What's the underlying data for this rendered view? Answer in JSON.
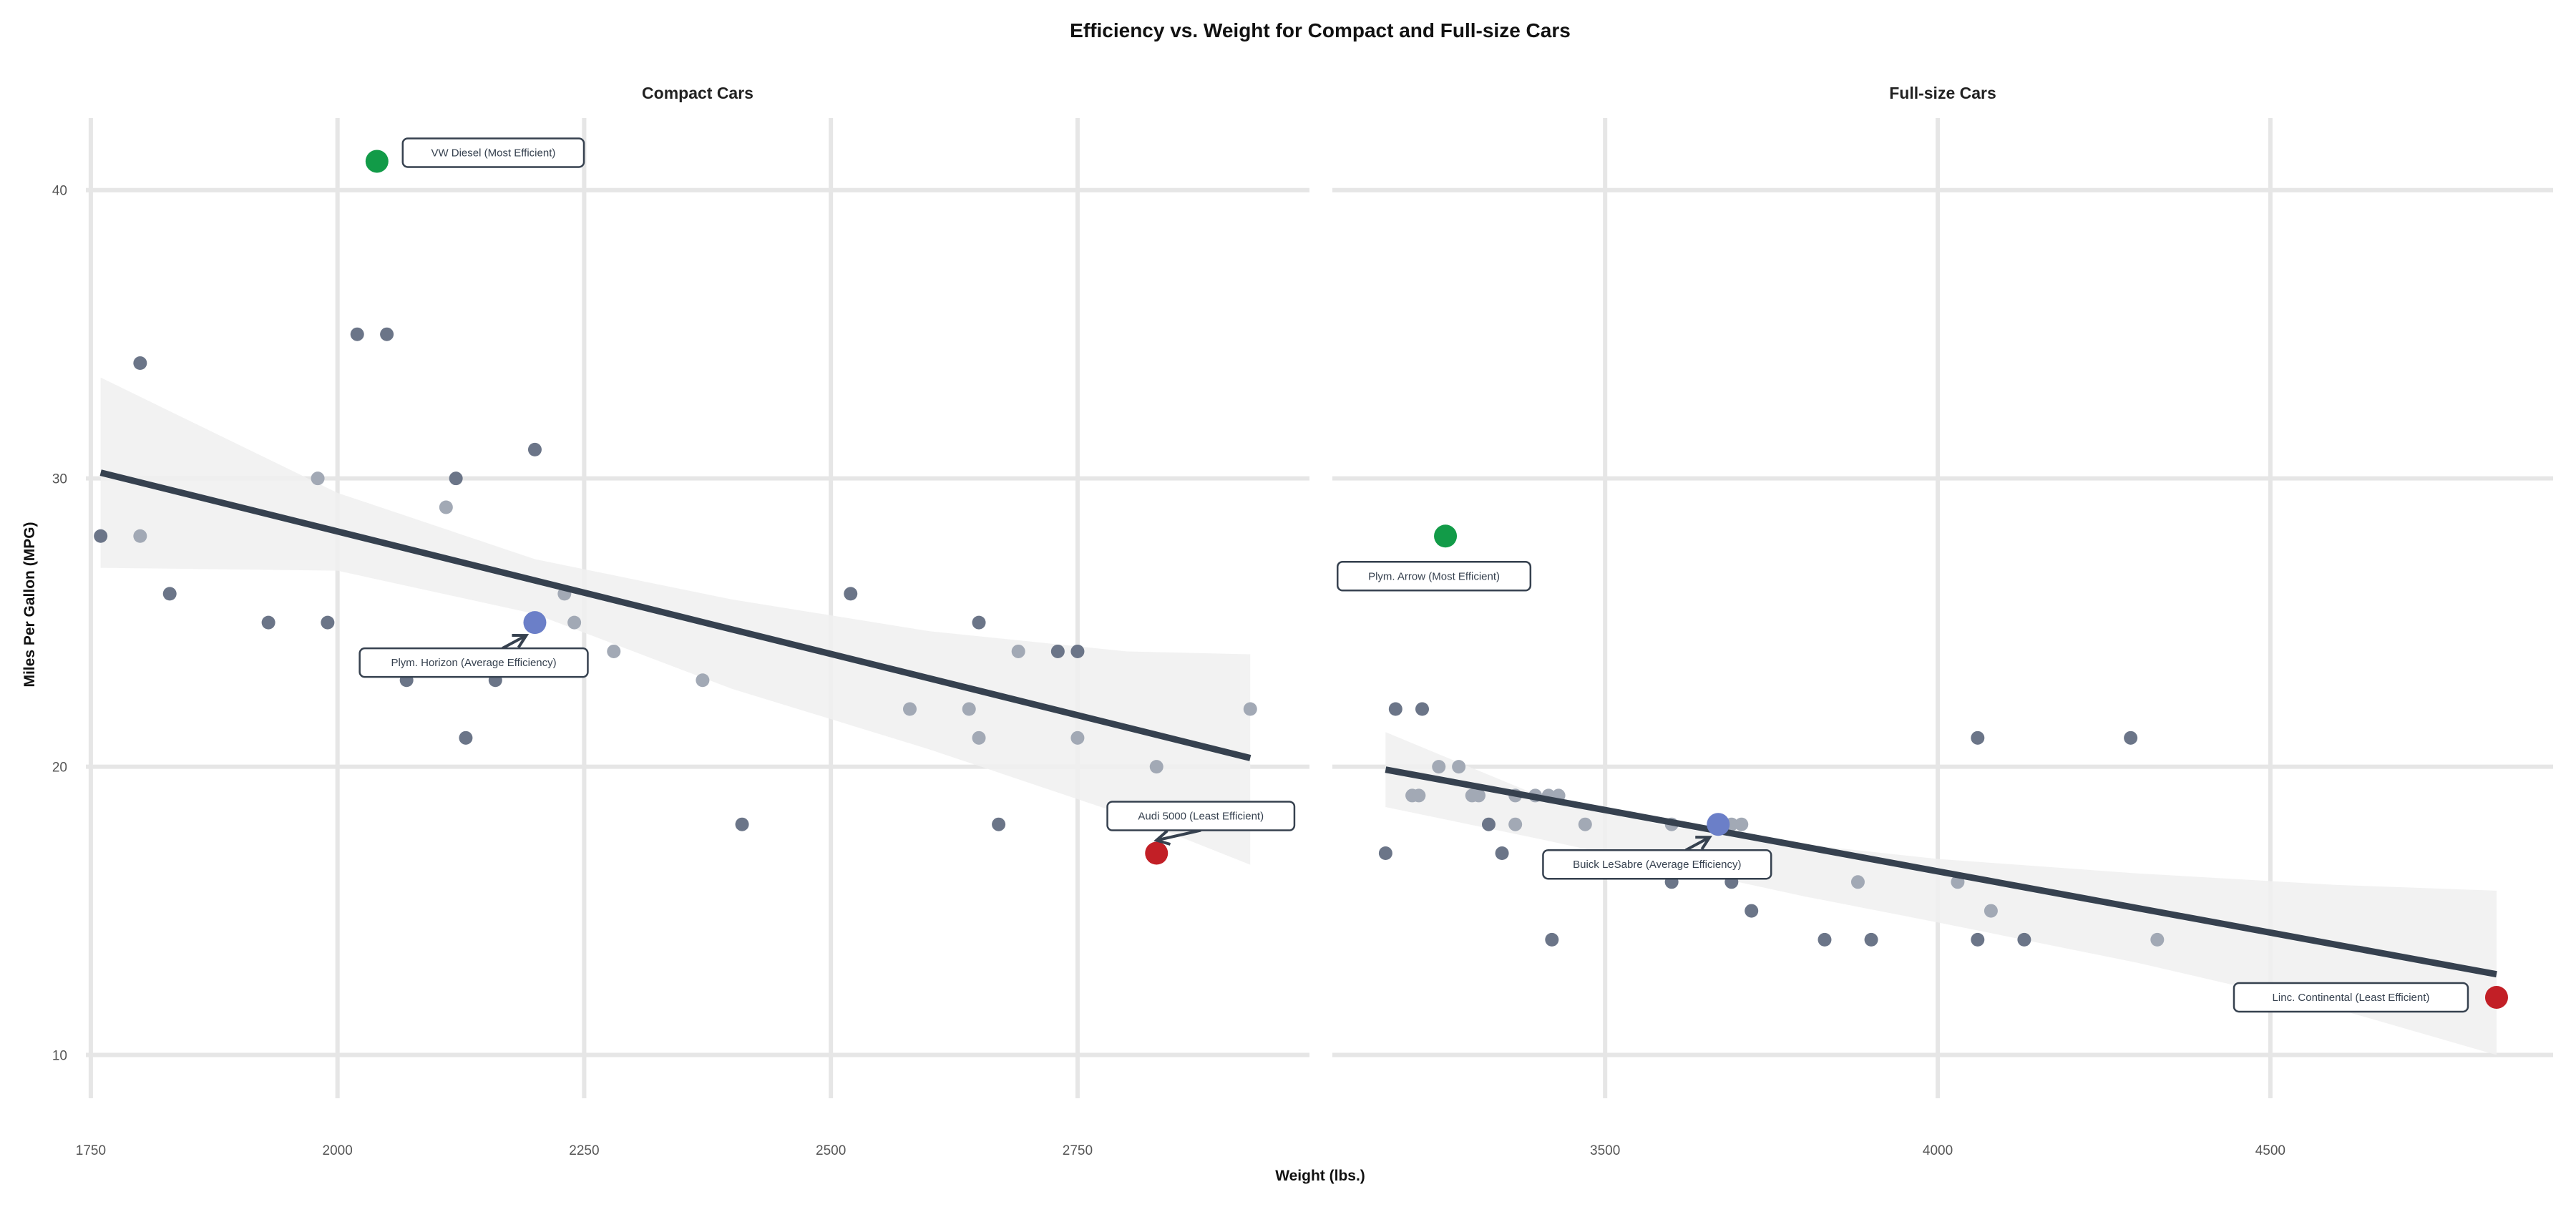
{
  "chart_data": {
    "type": "scatter",
    "title": "Efficiency vs. Weight for Compact and Full-size Cars",
    "xlabel": "Weight (lbs.)",
    "ylabel": "Miles Per Gallon (MPG)",
    "ylim": [
      8.5,
      42.5
    ],
    "yticks": [
      10,
      20,
      30,
      40
    ],
    "grid": true,
    "legend": "none",
    "colors": {
      "point_dark": "#6b7588",
      "point_light": "#a2a9b5",
      "most_efficient": "#129b48",
      "average": "#6b7fc8",
      "least_efficient": "#c21f26",
      "trend": "#36414f",
      "band": "#f0f0f0"
    },
    "panels": [
      {
        "title": "Compact Cars",
        "xlim": [
          1745,
          2985
        ],
        "xticks": [
          1750,
          2000,
          2250,
          2500,
          2750
        ],
        "trend": {
          "x": [
            1760,
            2925
          ],
          "y": [
            30.2,
            20.3
          ]
        },
        "band_upper": [
          [
            1760,
            33.5
          ],
          [
            2000,
            29.5
          ],
          [
            2200,
            27.2
          ],
          [
            2400,
            25.8
          ],
          [
            2600,
            24.7
          ],
          [
            2800,
            24.0
          ],
          [
            2925,
            23.9
          ]
        ],
        "band_lower": [
          [
            1760,
            26.9
          ],
          [
            2000,
            26.8
          ],
          [
            2200,
            25.3
          ],
          [
            2400,
            22.7
          ],
          [
            2600,
            20.6
          ],
          [
            2800,
            18.3
          ],
          [
            2925,
            16.6
          ]
        ],
        "points": [
          {
            "x": 1760,
            "y": 28,
            "shade": "dark"
          },
          {
            "x": 1800,
            "y": 34,
            "shade": "dark"
          },
          {
            "x": 1800,
            "y": 28,
            "shade": "light"
          },
          {
            "x": 1830,
            "y": 26,
            "shade": "dark"
          },
          {
            "x": 1930,
            "y": 25,
            "shade": "dark"
          },
          {
            "x": 1980,
            "y": 30,
            "shade": "light"
          },
          {
            "x": 1990,
            "y": 25,
            "shade": "dark"
          },
          {
            "x": 2020,
            "y": 35,
            "shade": "dark"
          },
          {
            "x": 2050,
            "y": 35,
            "shade": "dark"
          },
          {
            "x": 2070,
            "y": 23,
            "shade": "dark"
          },
          {
            "x": 2110,
            "y": 29,
            "shade": "light"
          },
          {
            "x": 2120,
            "y": 30,
            "shade": "dark"
          },
          {
            "x": 2130,
            "y": 21,
            "shade": "dark"
          },
          {
            "x": 2160,
            "y": 23,
            "shade": "dark"
          },
          {
            "x": 2200,
            "y": 31,
            "shade": "dark"
          },
          {
            "x": 2230,
            "y": 26,
            "shade": "light"
          },
          {
            "x": 2240,
            "y": 25,
            "shade": "light"
          },
          {
            "x": 2280,
            "y": 24,
            "shade": "light"
          },
          {
            "x": 2370,
            "y": 23,
            "shade": "light"
          },
          {
            "x": 2410,
            "y": 18,
            "shade": "dark"
          },
          {
            "x": 2520,
            "y": 26,
            "shade": "dark"
          },
          {
            "x": 2580,
            "y": 22,
            "shade": "light"
          },
          {
            "x": 2640,
            "y": 22,
            "shade": "light"
          },
          {
            "x": 2650,
            "y": 25,
            "shade": "dark"
          },
          {
            "x": 2650,
            "y": 21,
            "shade": "light"
          },
          {
            "x": 2670,
            "y": 18,
            "shade": "dark"
          },
          {
            "x": 2690,
            "y": 24,
            "shade": "light"
          },
          {
            "x": 2730,
            "y": 24,
            "shade": "dark"
          },
          {
            "x": 2750,
            "y": 24,
            "shade": "dark"
          },
          {
            "x": 2750,
            "y": 21,
            "shade": "light"
          },
          {
            "x": 2830,
            "y": 20,
            "shade": "light"
          },
          {
            "x": 2925,
            "y": 22,
            "shade": "light"
          }
        ],
        "highlights": [
          {
            "x": 2040,
            "y": 41,
            "kind": "most_efficient",
            "label": "VW Diesel (Most Efficient)",
            "anchor": "right",
            "arrow": false
          },
          {
            "x": 2200,
            "y": 25,
            "kind": "average",
            "label": "Plym. Horizon (Average Efficiency)",
            "anchor": "below-left",
            "arrow": true
          },
          {
            "x": 2830,
            "y": 17,
            "kind": "least_efficient",
            "label": "Audi 5000 (Least Efficient)",
            "anchor": "above",
            "arrow": true
          }
        ]
      },
      {
        "title": "Full-size Cars",
        "xlim": [
          3090,
          4925
        ],
        "xticks": [
          3500,
          4000,
          4500
        ],
        "trend": {
          "x": [
            3170,
            4840
          ],
          "y": [
            19.9,
            12.8
          ]
        },
        "band_upper": [
          [
            3170,
            21.2
          ],
          [
            3400,
            19.0
          ],
          [
            3600,
            17.9
          ],
          [
            3800,
            17.3
          ],
          [
            4000,
            16.8
          ],
          [
            4300,
            16.3
          ],
          [
            4600,
            15.9
          ],
          [
            4840,
            15.7
          ]
        ],
        "band_lower": [
          [
            3170,
            18.6
          ],
          [
            3400,
            17.5
          ],
          [
            3600,
            16.5
          ],
          [
            3800,
            15.5
          ],
          [
            4000,
            14.6
          ],
          [
            4300,
            13.2
          ],
          [
            4600,
            11.6
          ],
          [
            4840,
            10.0
          ]
        ],
        "points": [
          {
            "x": 3170,
            "y": 17,
            "shade": "dark"
          },
          {
            "x": 3185,
            "y": 22,
            "shade": "dark"
          },
          {
            "x": 3210,
            "y": 19,
            "shade": "light"
          },
          {
            "x": 3220,
            "y": 19,
            "shade": "light"
          },
          {
            "x": 3225,
            "y": 22,
            "shade": "dark"
          },
          {
            "x": 3250,
            "y": 20,
            "shade": "light"
          },
          {
            "x": 3280,
            "y": 20,
            "shade": "light"
          },
          {
            "x": 3300,
            "y": 19,
            "shade": "light"
          },
          {
            "x": 3310,
            "y": 19,
            "shade": "light"
          },
          {
            "x": 3325,
            "y": 18,
            "shade": "dark"
          },
          {
            "x": 3345,
            "y": 17,
            "shade": "dark"
          },
          {
            "x": 3365,
            "y": 18,
            "shade": "light"
          },
          {
            "x": 3365,
            "y": 19,
            "shade": "light"
          },
          {
            "x": 3395,
            "y": 19,
            "shade": "light"
          },
          {
            "x": 3415,
            "y": 19,
            "shade": "light"
          },
          {
            "x": 3420,
            "y": 14,
            "shade": "dark"
          },
          {
            "x": 3430,
            "y": 19,
            "shade": "light"
          },
          {
            "x": 3470,
            "y": 18,
            "shade": "light"
          },
          {
            "x": 3600,
            "y": 18,
            "shade": "light"
          },
          {
            "x": 3600,
            "y": 16,
            "shade": "dark"
          },
          {
            "x": 3690,
            "y": 18,
            "shade": "light"
          },
          {
            "x": 3690,
            "y": 16,
            "shade": "dark"
          },
          {
            "x": 3705,
            "y": 18,
            "shade": "light"
          },
          {
            "x": 3720,
            "y": 15,
            "shade": "dark"
          },
          {
            "x": 3830,
            "y": 14,
            "shade": "dark"
          },
          {
            "x": 3880,
            "y": 16,
            "shade": "light"
          },
          {
            "x": 3900,
            "y": 14,
            "shade": "dark"
          },
          {
            "x": 4030,
            "y": 16,
            "shade": "light"
          },
          {
            "x": 4060,
            "y": 21,
            "shade": "dark"
          },
          {
            "x": 4060,
            "y": 14,
            "shade": "dark"
          },
          {
            "x": 4080,
            "y": 15,
            "shade": "light"
          },
          {
            "x": 4130,
            "y": 14,
            "shade": "dark"
          },
          {
            "x": 4290,
            "y": 21,
            "shade": "dark"
          },
          {
            "x": 4330,
            "y": 14,
            "shade": "light"
          }
        ],
        "highlights": [
          {
            "x": 3260,
            "y": 28,
            "kind": "most_efficient",
            "label": "Plym. Arrow (Most Efficient)",
            "anchor": "below",
            "arrow": false
          },
          {
            "x": 3670,
            "y": 18,
            "kind": "average",
            "label": "Buick LeSabre (Average Efficiency)",
            "anchor": "below-left",
            "arrow": true
          },
          {
            "x": 4840,
            "y": 12,
            "kind": "least_efficient",
            "label": "Linc. Continental (Least Efficient)",
            "anchor": "left",
            "arrow": false
          }
        ]
      }
    ]
  }
}
